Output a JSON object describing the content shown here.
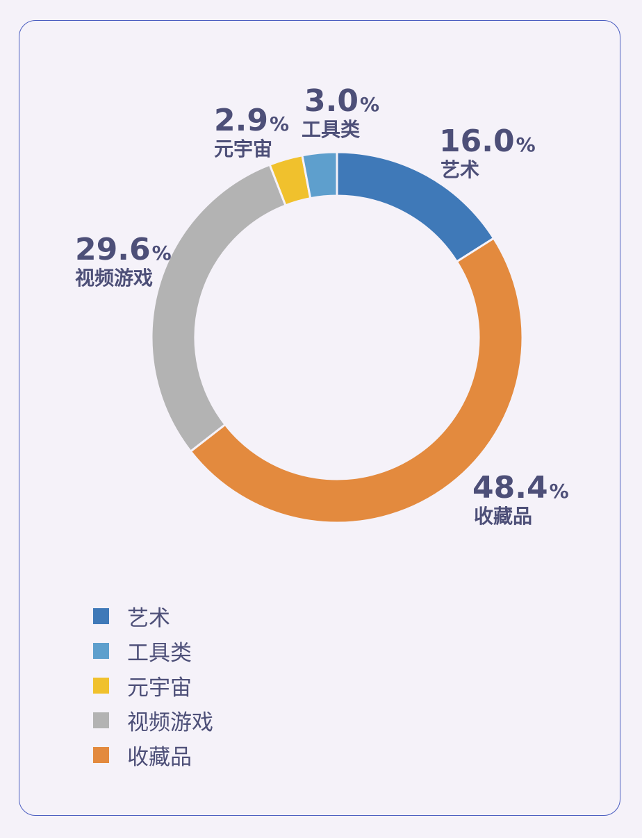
{
  "chart_data": {
    "type": "pie",
    "variant": "donut",
    "slices": [
      {
        "label": "艺术",
        "value": 16.0,
        "display": "16.0",
        "color": "#3f79b8"
      },
      {
        "label": "收藏品",
        "value": 48.4,
        "display": "48.4",
        "color": "#e38a3e"
      },
      {
        "label": "视频游戏",
        "value": 29.6,
        "display": "29.6",
        "color": "#b3b3b3"
      },
      {
        "label": "元宇宙",
        "value": 2.9,
        "display": "2.9",
        "color": "#f0c12d"
      },
      {
        "label": "工具类",
        "value": 3.0,
        "display": "3.0",
        "color": "#5e9fcd"
      }
    ],
    "percent_symbol": "%",
    "legend": [
      {
        "label": "艺术",
        "color": "#3f79b8"
      },
      {
        "label": "工具类",
        "color": "#5e9fcd"
      },
      {
        "label": "元宇宙",
        "color": "#f0c12d"
      },
      {
        "label": "视频游戏",
        "color": "#b3b3b3"
      },
      {
        "label": "收藏品",
        "color": "#e38a3e"
      }
    ],
    "legend_position": "bottom-left"
  }
}
